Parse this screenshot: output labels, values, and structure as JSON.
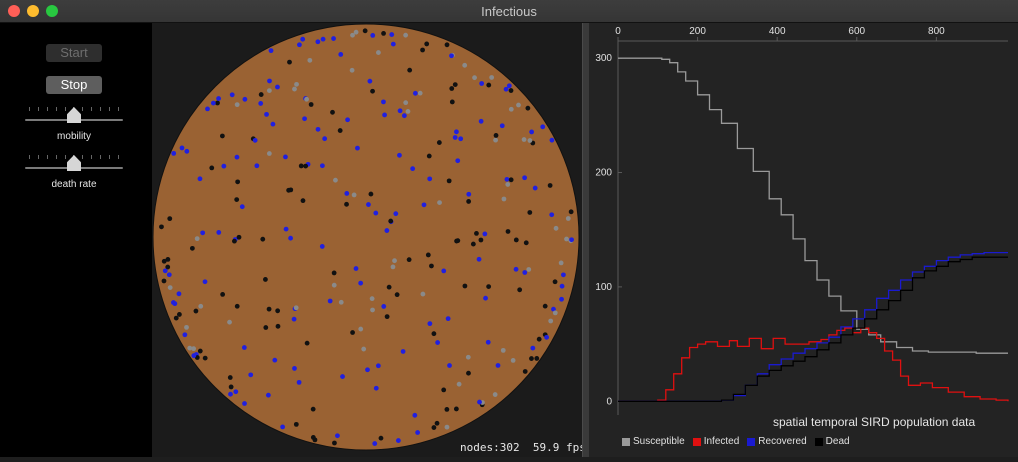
{
  "window": {
    "title": "Infectious",
    "buttons": [
      {
        "name": "close-button",
        "color": "#ff5f57"
      },
      {
        "name": "minimize-button",
        "color": "#febc2e"
      },
      {
        "name": "maximize-button",
        "color": "#28c840"
      }
    ]
  },
  "controls": {
    "start_label": "Start",
    "stop_label": "Stop",
    "mobility_label": "mobility",
    "death_rate_label": "death rate",
    "mobility_value": 0.5,
    "death_rate_value": 0.5
  },
  "simulation": {
    "background_color": "#9a6233",
    "status": "nodes:302  59.9 fps"
  },
  "chart_data": {
    "type": "line",
    "title": "spatial temporal SIRD population data",
    "xlim": [
      0,
      980
    ],
    "ylim": [
      -12,
      315
    ],
    "xticks": [
      0,
      200,
      400,
      600,
      800
    ],
    "yticks": [
      0,
      100,
      200,
      300
    ],
    "legend": "bottom",
    "series": [
      {
        "name": "Susceptible",
        "color": "#9a9a9a",
        "x": [
          0,
          60,
          110,
          130,
          150,
          170,
          200,
          230,
          260,
          300,
          340,
          380,
          410,
          440,
          470,
          500,
          530,
          560,
          600,
          630,
          660,
          700,
          740,
          780,
          800,
          850,
          900,
          950,
          980
        ],
        "y": [
          300,
          300,
          299,
          296,
          288,
          280,
          268,
          255,
          243,
          221,
          201,
          177,
          163,
          142,
          123,
          106,
          92,
          79,
          63,
          58,
          52,
          47,
          44,
          43,
          43,
          43,
          42,
          42,
          42
        ]
      },
      {
        "name": "Infected",
        "color": "#e01010",
        "x": [
          0,
          80,
          100,
          120,
          140,
          160,
          180,
          200,
          220,
          250,
          280,
          300,
          330,
          360,
          390,
          420,
          450,
          480,
          510,
          530,
          550,
          570,
          590,
          610,
          630,
          650,
          670,
          690,
          710,
          730,
          760,
          790,
          830,
          870,
          910,
          950,
          980
        ],
        "y": [
          0,
          0,
          1,
          10,
          24,
          38,
          47,
          50,
          52,
          48,
          53,
          48,
          55,
          46,
          55,
          50,
          50,
          52,
          54,
          58,
          62,
          64,
          60,
          64,
          60,
          55,
          44,
          36,
          22,
          14,
          16,
          12,
          8,
          4,
          2,
          1,
          0
        ]
      },
      {
        "name": "Recovered",
        "color": "#1a1ad0",
        "x": [
          0,
          200,
          260,
          290,
          320,
          350,
          380,
          410,
          440,
          470,
          500,
          530,
          560,
          590,
          620,
          650,
          680,
          710,
          740,
          770,
          800,
          830,
          860,
          890,
          920,
          950,
          980
        ],
        "y": [
          0,
          0,
          1,
          5,
          14,
          24,
          32,
          37,
          42,
          46,
          51,
          56,
          65,
          72,
          80,
          90,
          97,
          106,
          113,
          118,
          123,
          126,
          128,
          129,
          130,
          130,
          130
        ]
      },
      {
        "name": "Dead",
        "color": "#000000",
        "x": [
          0,
          110,
          180,
          230,
          260,
          290,
          320,
          350,
          380,
          410,
          440,
          470,
          500,
          530,
          560,
          590,
          620,
          650,
          680,
          710,
          740,
          770,
          800,
          830,
          860,
          890,
          920,
          950,
          980
        ],
        "y": [
          0,
          0,
          0,
          0,
          1,
          6,
          14,
          22,
          27,
          31,
          35,
          39,
          45,
          51,
          58,
          64,
          72,
          80,
          88,
          97,
          108,
          114,
          118,
          122,
          124,
          126,
          126,
          126,
          126
        ]
      }
    ]
  }
}
